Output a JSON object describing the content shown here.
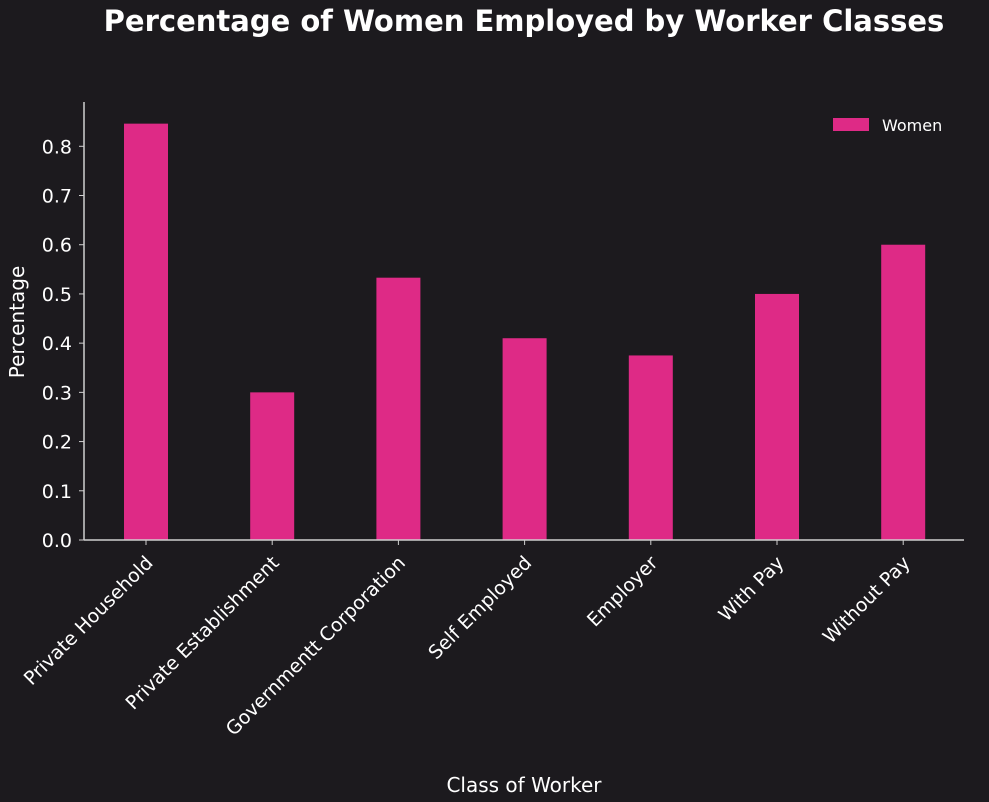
{
  "chart_data": {
    "type": "bar",
    "title": "Percentage of Women Employed by Worker Classes",
    "xlabel": "Class of Worker",
    "ylabel": "Percentage",
    "categories": [
      "Private Household",
      "Private Establishment",
      "Governmentt Corporation",
      "Self Employed",
      "Employer",
      "With Pay",
      "Without Pay"
    ],
    "series": [
      {
        "name": "Women",
        "values": [
          0.846,
          0.3,
          0.533,
          0.41,
          0.375,
          0.5,
          0.6
        ],
        "color": "#de2a86"
      }
    ],
    "ylim": [
      0,
      0.89
    ],
    "yticks": [
      "0.0",
      "0.1",
      "0.2",
      "0.3",
      "0.4",
      "0.5",
      "0.6",
      "0.7",
      "0.8"
    ],
    "grid": false,
    "legend_position": "top-right"
  },
  "colors": {
    "background": "#1c1a1e",
    "axis": "#cfcfcf",
    "text": "#ffffff"
  }
}
